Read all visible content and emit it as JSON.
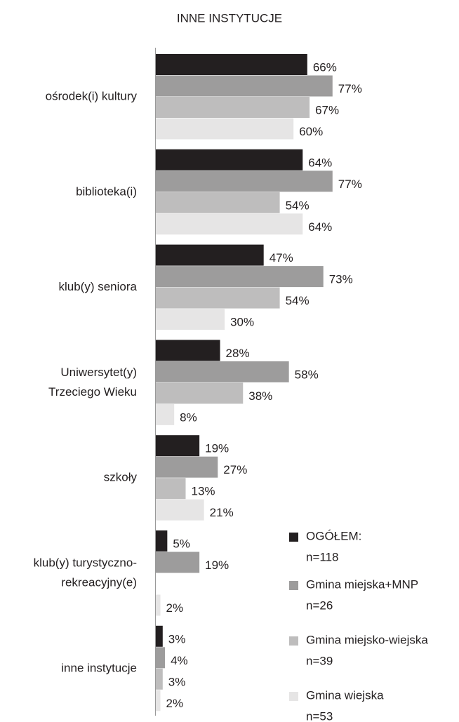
{
  "chart_data": {
    "type": "bar",
    "orientation": "horizontal",
    "title": "INNE INSTYTUCJE",
    "categories": [
      [
        "ośrodek(i) kultury"
      ],
      [
        "biblioteka(i)"
      ],
      [
        "klub(y) seniora"
      ],
      [
        "Uniwersytet(y)",
        "Trzeciego Wieku"
      ],
      [
        "szkoły"
      ],
      [
        "klub(y) turystyczno-",
        "rekreacyjny(e)"
      ],
      [
        "inne instytucje"
      ]
    ],
    "xlim": [
      0,
      100
    ],
    "series": [
      {
        "name": "OGÓŁEM:",
        "n": "n=118",
        "color": "#231f20",
        "values": [
          66,
          64,
          47,
          28,
          19,
          5,
          3
        ],
        "value_labels": [
          "66%",
          "64%",
          "47%",
          "28%",
          "19%",
          "5%",
          "3%"
        ]
      },
      {
        "name": "Gmina miejska+MNP",
        "n": "n=26",
        "color": "#9d9c9c",
        "values": [
          77,
          77,
          73,
          58,
          27,
          19,
          4
        ],
        "value_labels": [
          "77%",
          "77%",
          "73%",
          "58%",
          "27%",
          "19%",
          "4%"
        ]
      },
      {
        "name": "Gmina miejsko-wiejska",
        "n": "n=39",
        "color": "#bebdbd",
        "values": [
          67,
          54,
          54,
          38,
          13,
          null,
          3
        ],
        "value_labels": [
          "67%",
          "54%",
          "54%",
          "38%",
          "13%",
          null,
          "3%"
        ]
      },
      {
        "name": "Gmina wiejska",
        "n": "n=53",
        "color": "#e6e5e5",
        "values": [
          60,
          64,
          30,
          8,
          21,
          2,
          2
        ],
        "value_labels": [
          "60%",
          "64%",
          "30%",
          "8%",
          "21%",
          "2%",
          "2%"
        ]
      }
    ]
  }
}
